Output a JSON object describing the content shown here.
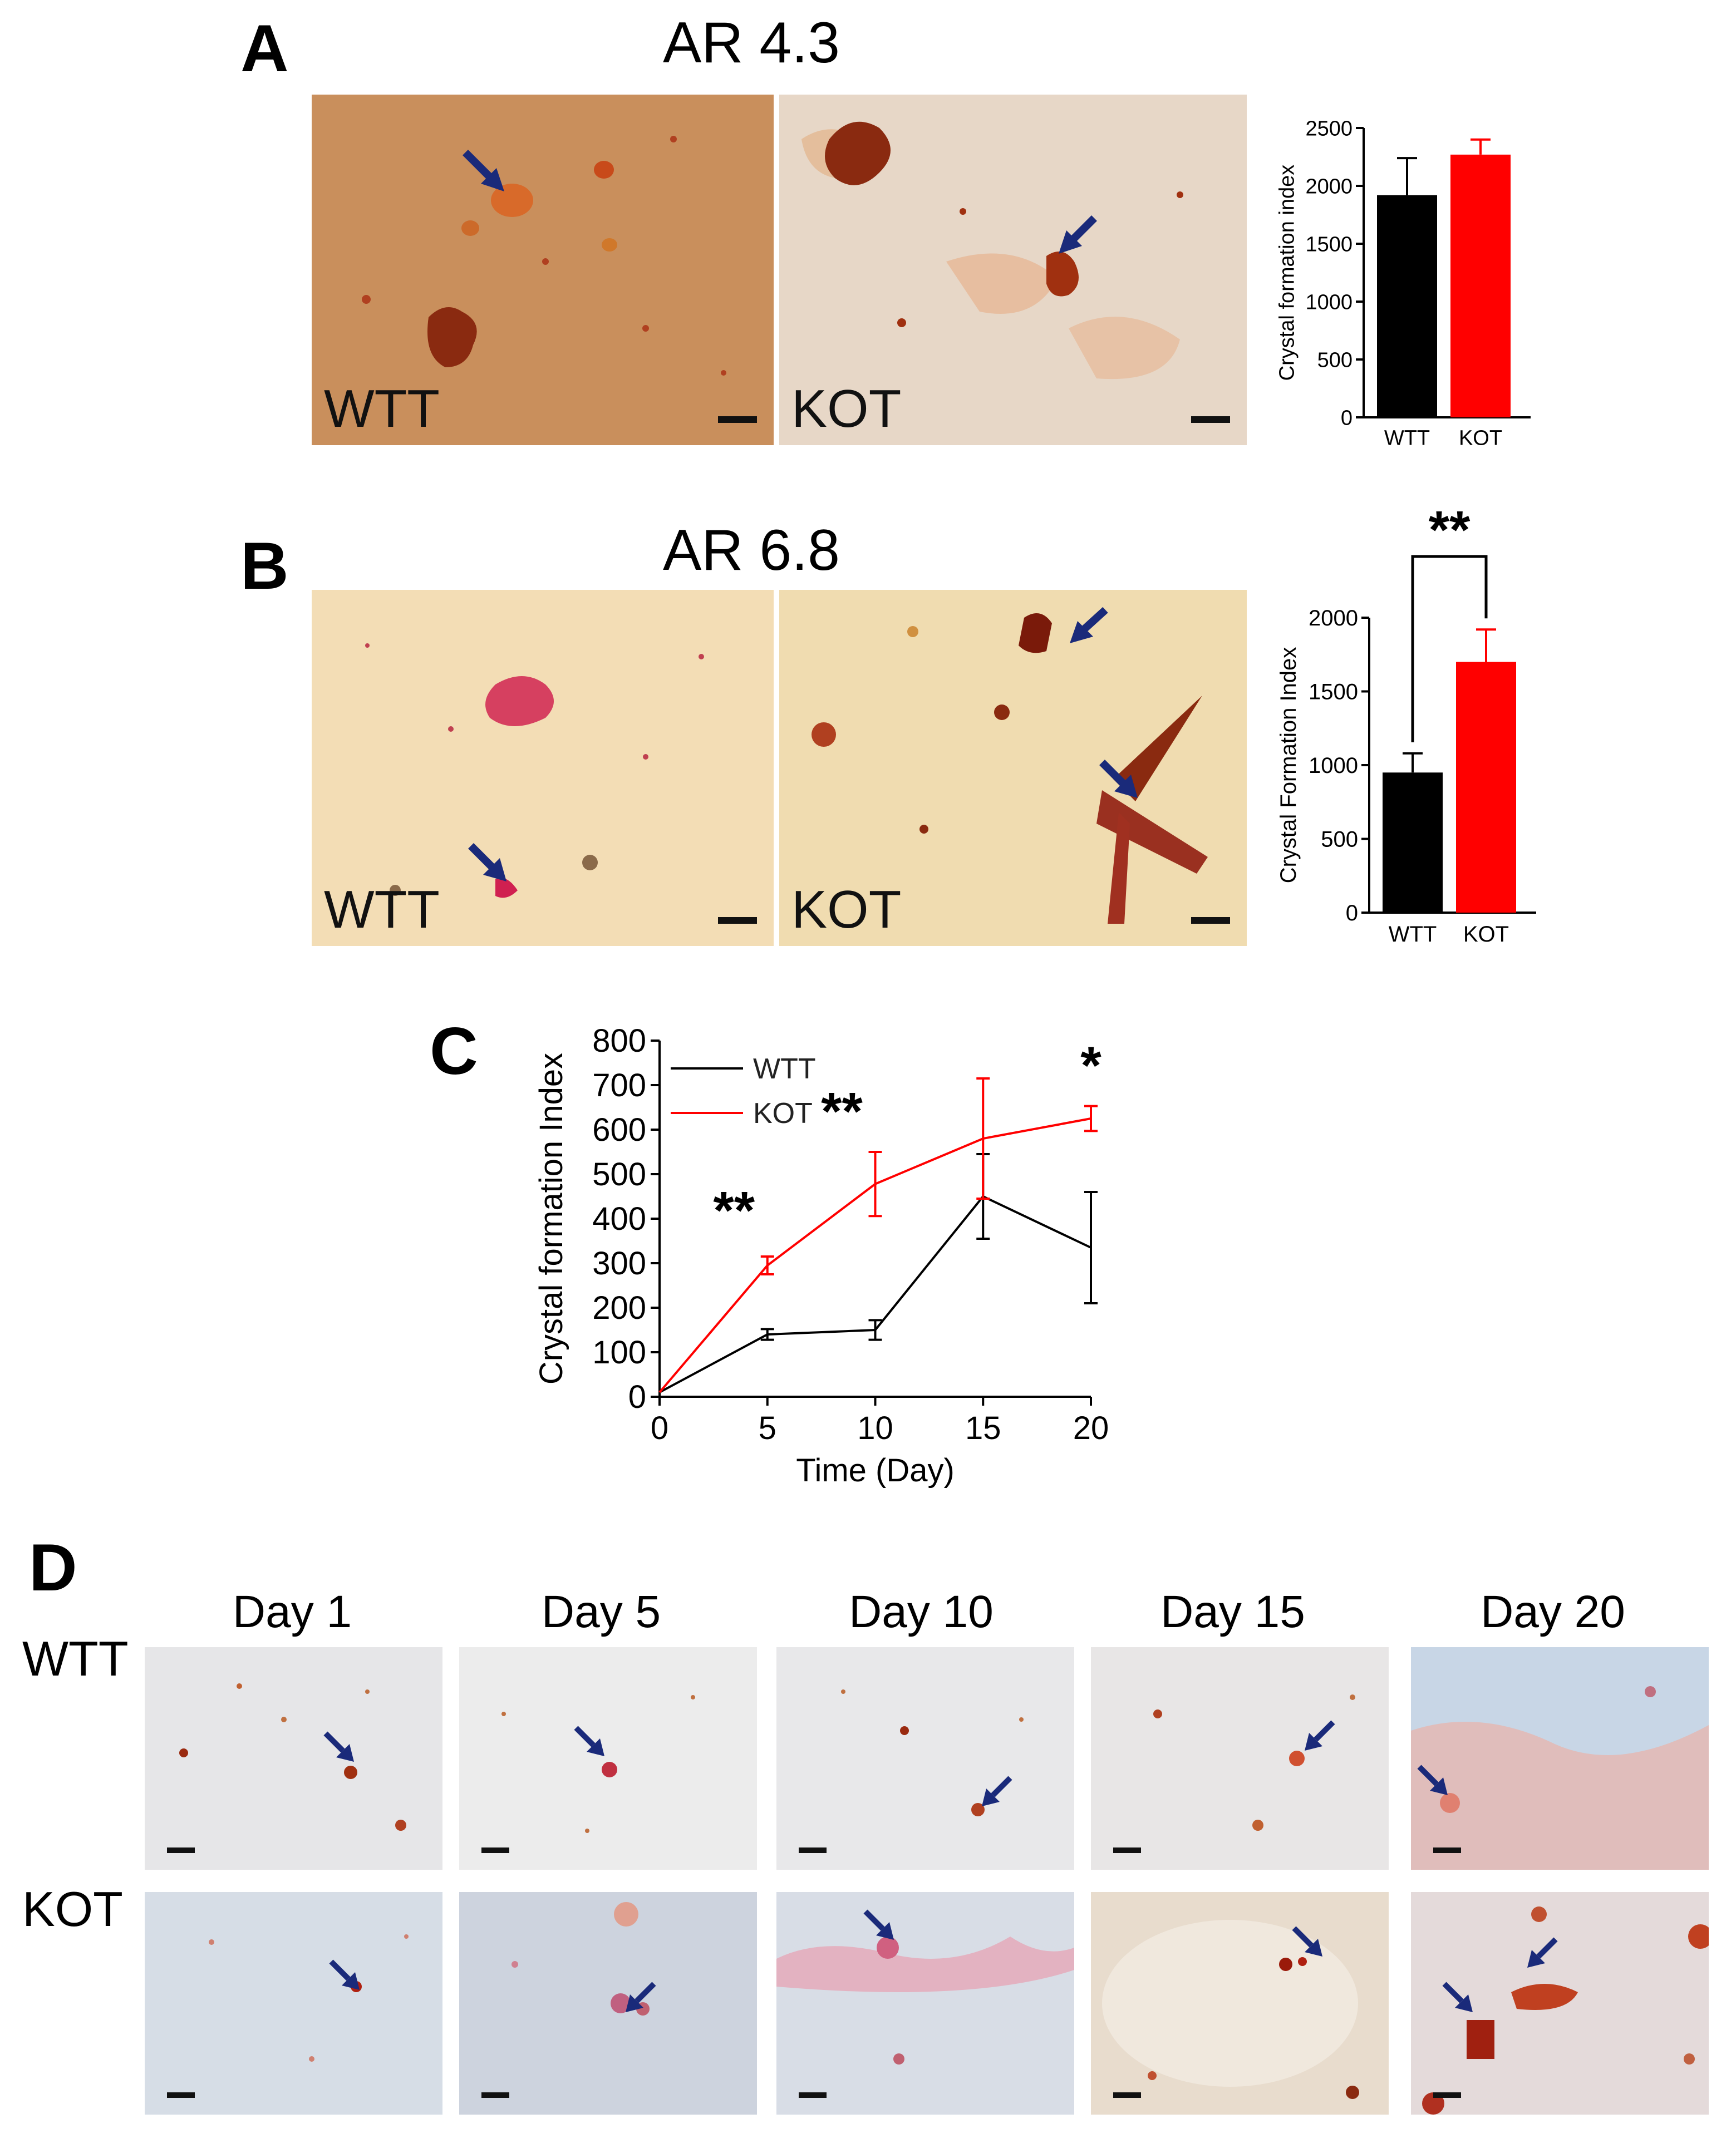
{
  "panelA": {
    "letter": "A",
    "title": "AR 4.3",
    "images": [
      {
        "label": "WTT",
        "bg": "#c98f5c"
      },
      {
        "label": "KOT",
        "bg": "#e7d7c7"
      }
    ]
  },
  "panelB": {
    "letter": "B",
    "title": "AR 6.8",
    "images": [
      {
        "label": "WTT",
        "bg": "#f3ddb5"
      },
      {
        "label": "KOT",
        "bg": "#f0dcb0"
      }
    ]
  },
  "panelC": {
    "letter": "C"
  },
  "panelD": {
    "letter": "D",
    "days": [
      "Day 1",
      "Day 5",
      "Day 10",
      "Day 15",
      "Day 20"
    ],
    "rows": [
      "WTT",
      "KOT"
    ]
  },
  "chart_data": [
    {
      "id": "A",
      "type": "bar",
      "categories": [
        "WTT",
        "KOT"
      ],
      "values": [
        1920,
        2270
      ],
      "errors": [
        320,
        130
      ],
      "colors": [
        "#000000",
        "#ff0000"
      ],
      "ylabel": "Crystal formation index",
      "ylim": [
        0,
        2500
      ],
      "yticks": [
        "0",
        "500",
        "1000",
        "1500",
        "2000",
        "2500"
      ]
    },
    {
      "id": "B",
      "type": "bar",
      "categories": [
        "WTT",
        "KOT"
      ],
      "values": [
        950,
        1700
      ],
      "errors": [
        130,
        220
      ],
      "colors": [
        "#000000",
        "#ff0000"
      ],
      "ylabel": "Crystal Formation Index",
      "ylim": [
        0,
        2000
      ],
      "yticks": [
        "0",
        "500",
        "1000",
        "1500",
        "2000"
      ],
      "significance": "**"
    },
    {
      "id": "C",
      "type": "line",
      "x": [
        0,
        5,
        10,
        15,
        20
      ],
      "series": [
        {
          "name": "WTT",
          "color": "#000000",
          "values": [
            10,
            140,
            150,
            450,
            335
          ],
          "errors": [
            0,
            12,
            22,
            95,
            125
          ]
        },
        {
          "name": "KOT",
          "color": "#ff0000",
          "values": [
            10,
            295,
            478,
            580,
            625
          ],
          "errors": [
            0,
            20,
            72,
            135,
            28
          ]
        }
      ],
      "xlabel": "Time (Day)",
      "ylabel": "Crystal formation Index",
      "xlim": [
        0,
        20
      ],
      "ylim": [
        0,
        800
      ],
      "xticks": [
        "0",
        "5",
        "10",
        "15",
        "20"
      ],
      "yticks": [
        "0",
        "100",
        "200",
        "300",
        "400",
        "500",
        "600",
        "700",
        "800"
      ],
      "annotations": [
        {
          "x": 5,
          "text": "**"
        },
        {
          "x": 10,
          "text": "**"
        },
        {
          "x": 20,
          "text": "*"
        }
      ]
    }
  ]
}
